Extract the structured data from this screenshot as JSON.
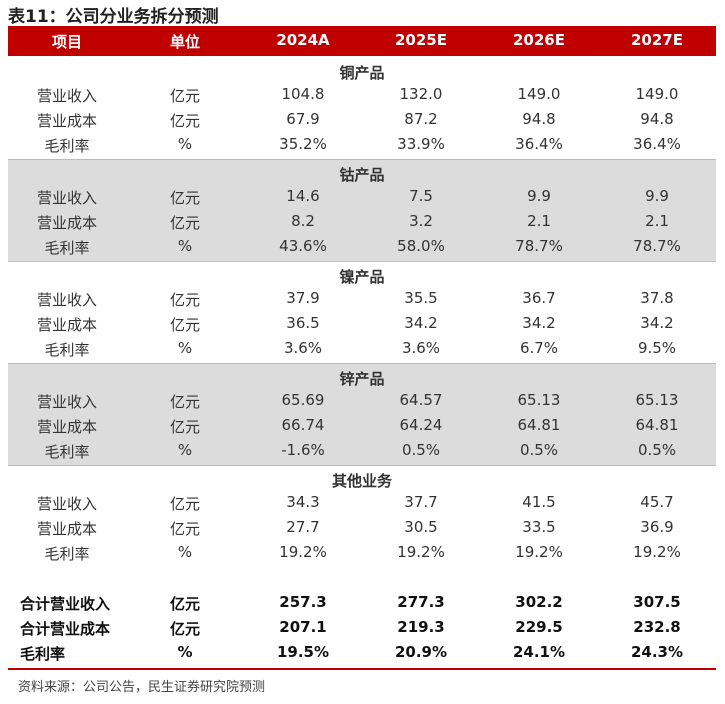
{
  "title": "表11：公司分业务拆分预测",
  "table": {
    "header": [
      "项目",
      "单位",
      "2024A",
      "2025E",
      "2026E",
      "2027E"
    ],
    "sections": [
      {
        "title": "铜产品",
        "rows": [
          [
            "营业收入",
            "亿元",
            "104.8",
            "132.0",
            "149.0",
            "149.0"
          ],
          [
            "营业成本",
            "亿元",
            "67.9",
            "87.2",
            "94.8",
            "94.8"
          ],
          [
            "毛利率",
            "%",
            "35.2%",
            "33.9%",
            "36.4%",
            "36.4%"
          ]
        ]
      },
      {
        "title": "钴产品",
        "rows": [
          [
            "营业收入",
            "亿元",
            "14.6",
            "7.5",
            "9.9",
            "9.9"
          ],
          [
            "营业成本",
            "亿元",
            "8.2",
            "3.2",
            "2.1",
            "2.1"
          ],
          [
            "毛利率",
            "%",
            "43.6%",
            "58.0%",
            "78.7%",
            "78.7%"
          ]
        ]
      },
      {
        "title": "镍产品",
        "rows": [
          [
            "营业收入",
            "亿元",
            "37.9",
            "35.5",
            "36.7",
            "37.8"
          ],
          [
            "营业成本",
            "亿元",
            "36.5",
            "34.2",
            "34.2",
            "34.2"
          ],
          [
            "毛利率",
            "%",
            "3.6%",
            "3.6%",
            "6.7%",
            "9.5%"
          ]
        ]
      },
      {
        "title": "锌产品",
        "rows": [
          [
            "营业收入",
            "亿元",
            "65.69",
            "64.57",
            "65.13",
            "65.13"
          ],
          [
            "营业成本",
            "亿元",
            "66.74",
            "64.24",
            "64.81",
            "64.81"
          ],
          [
            "毛利率",
            "%",
            "-1.6%",
            "0.5%",
            "0.5%",
            "0.5%"
          ]
        ]
      },
      {
        "title": "其他业务",
        "rows": [
          [
            "营业收入",
            "亿元",
            "34.3",
            "37.7",
            "41.5",
            "45.7"
          ],
          [
            "营业成本",
            "亿元",
            "27.7",
            "30.5",
            "33.5",
            "36.9"
          ],
          [
            "毛利率",
            "%",
            "19.2%",
            "19.2%",
            "19.2%",
            "19.2%"
          ]
        ]
      }
    ],
    "totals": [
      [
        "合计营业收入",
        "亿元",
        "257.3",
        "277.3",
        "302.2",
        "307.5"
      ],
      [
        "合计营业成本",
        "亿元",
        "207.1",
        "219.3",
        "229.5",
        "232.8"
      ],
      [
        "毛利率",
        "%",
        "19.5%",
        "20.9%",
        "24.1%",
        "24.3%"
      ]
    ]
  },
  "source": "资料来源：公司公告，民生证券研究院预测"
}
